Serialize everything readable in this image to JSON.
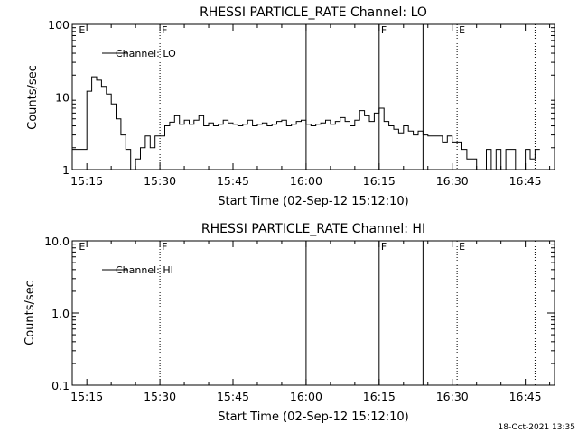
{
  "footer_timestamp": "18-Oct-2021 13:35",
  "colors": {
    "background": "#ffffff",
    "foreground": "#000000"
  },
  "chart_data": [
    {
      "type": "line",
      "title": "RHESSI PARTICLE_RATE Channel: LO",
      "xlabel": "Start Time (02-Sep-12 15:12:10)",
      "ylabel": "Counts/sec",
      "xlim": [
        "15:12",
        "16:51"
      ],
      "ylim": [
        1,
        100
      ],
      "yscale": "log",
      "x_tick_labels": [
        "15:15",
        "15:30",
        "15:45",
        "16:00",
        "16:15",
        "16:30",
        "16:45"
      ],
      "y_tick_labels": [
        "1",
        "10",
        "100"
      ],
      "legend": {
        "entries": [
          "Channel: LO"
        ],
        "placement": "top-left"
      },
      "grid": false,
      "markers": [
        {
          "time": "15:13",
          "label": "E",
          "style": "none"
        },
        {
          "time": "15:30",
          "label": "F",
          "style": "dotted"
        },
        {
          "time": "16:00",
          "label": "",
          "style": "solid"
        },
        {
          "time": "16:15",
          "label": "F",
          "style": "solid"
        },
        {
          "time": "16:24",
          "label": "",
          "style": "solid"
        },
        {
          "time": "16:31",
          "label": "E",
          "style": "dotted"
        },
        {
          "time": "16:47",
          "label": "",
          "style": "dotted"
        }
      ],
      "series": [
        {
          "name": "Channel: LO",
          "x": [
            "15:12",
            "15:14",
            "15:15",
            "15:16",
            "15:17",
            "15:18",
            "15:19",
            "15:20",
            "15:21",
            "15:22",
            "15:23",
            "15:24",
            "15:25",
            "15:26",
            "15:27",
            "15:28",
            "15:29",
            "15:30",
            "15:31",
            "15:32",
            "15:33",
            "15:34",
            "15:35",
            "15:36",
            "15:37",
            "15:38",
            "15:39",
            "15:40",
            "15:41",
            "15:42",
            "15:43",
            "15:44",
            "15:45",
            "15:46",
            "15:47",
            "15:48",
            "15:49",
            "15:50",
            "15:51",
            "15:52",
            "15:53",
            "15:54",
            "15:55",
            "15:56",
            "15:57",
            "15:58",
            "15:59",
            "16:00",
            "16:01",
            "16:02",
            "16:03",
            "16:04",
            "16:05",
            "16:06",
            "16:07",
            "16:08",
            "16:09",
            "16:10",
            "16:11",
            "16:12",
            "16:13",
            "16:14",
            "16:15",
            "16:16",
            "16:17",
            "16:18",
            "16:19",
            "16:20",
            "16:21",
            "16:22",
            "16:23",
            "16:24",
            "16:25",
            "16:26",
            "16:27",
            "16:28",
            "16:29",
            "16:30",
            "16:31",
            "16:32",
            "16:33",
            "16:34",
            "16:35",
            "16:36",
            "16:37",
            "16:38",
            "16:39",
            "16:40",
            "16:41",
            "16:42",
            "16:43",
            "16:44",
            "16:45",
            "16:46",
            "16:47"
          ],
          "values": [
            1.9,
            1.9,
            12,
            19,
            17,
            14,
            11,
            8,
            5,
            3,
            1.9,
            1,
            1.4,
            2,
            2.9,
            2,
            2.9,
            2.9,
            4,
            4.5,
            5.5,
            4.2,
            4.8,
            4.2,
            4.8,
            5.5,
            4,
            4.4,
            4,
            4.2,
            4.8,
            4.4,
            4.2,
            4,
            4.2,
            4.8,
            4,
            4.2,
            4.4,
            4,
            4.2,
            4.6,
            4.8,
            4,
            4.2,
            4.6,
            4.8,
            4.2,
            4,
            4.2,
            4.4,
            4.8,
            4.2,
            4.6,
            5.2,
            4.6,
            4,
            4.8,
            6.5,
            5.5,
            4.6,
            6,
            7,
            4.6,
            4,
            3.6,
            3.2,
            4,
            3.4,
            3,
            3.4,
            3,
            2.9,
            2.9,
            2.9,
            2.4,
            2.9,
            2.4,
            2.4,
            1.9,
            1.4,
            1.4,
            1,
            1,
            1.9,
            1,
            1.9,
            1,
            1.9,
            1.9,
            1,
            1,
            1.9,
            1.4,
            1.9
          ]
        }
      ]
    },
    {
      "type": "line",
      "title": "RHESSI PARTICLE_RATE Channel: HI",
      "xlabel": "Start Time (02-Sep-12 15:12:10)",
      "ylabel": "Counts/sec",
      "xlim": [
        "15:12",
        "16:51"
      ],
      "ylim": [
        0.1,
        10.0
      ],
      "yscale": "log",
      "x_tick_labels": [
        "15:15",
        "15:30",
        "15:45",
        "16:00",
        "16:15",
        "16:30",
        "16:45"
      ],
      "y_tick_labels": [
        "0.1",
        "1.0",
        "10.0"
      ],
      "legend": {
        "entries": [
          "Channel: HI"
        ],
        "placement": "top-left"
      },
      "grid": false,
      "markers": [
        {
          "time": "15:13",
          "label": "E",
          "style": "none"
        },
        {
          "time": "15:30",
          "label": "F",
          "style": "dotted"
        },
        {
          "time": "16:00",
          "label": "",
          "style": "solid"
        },
        {
          "time": "16:15",
          "label": "F",
          "style": "solid"
        },
        {
          "time": "16:24",
          "label": "",
          "style": "solid"
        },
        {
          "time": "16:31",
          "label": "E",
          "style": "dotted"
        },
        {
          "time": "16:47",
          "label": "",
          "style": "dotted"
        }
      ],
      "series": [
        {
          "name": "Channel: HI",
          "x": [],
          "values": []
        }
      ]
    }
  ]
}
